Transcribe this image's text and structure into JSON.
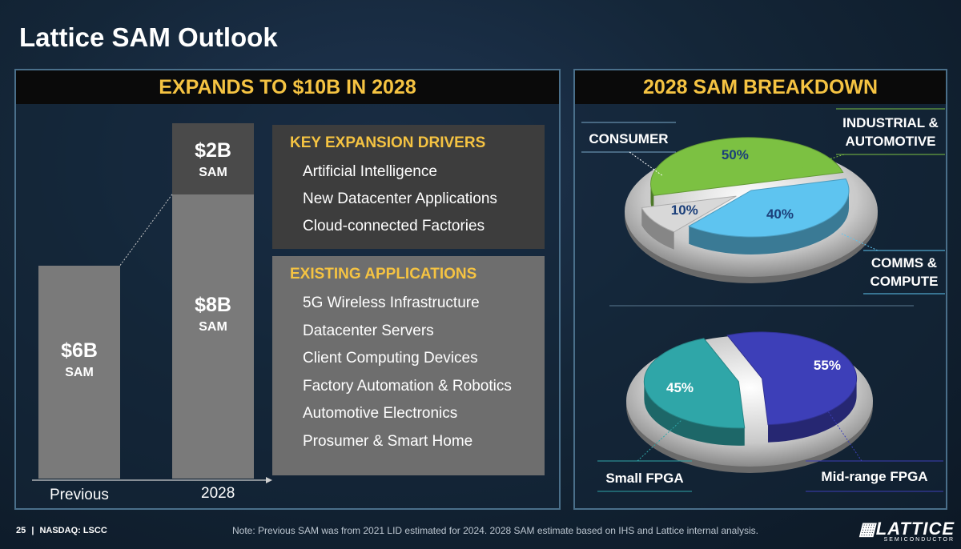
{
  "slide": {
    "title": "Lattice SAM Outlook"
  },
  "left_panel": {
    "header": "EXPANDS TO $10B IN 2028",
    "drivers": {
      "heading": "KEY EXPANSION DRIVERS",
      "items": [
        "Artificial Intelligence",
        "New Datacenter Applications",
        "Cloud-connected Factories"
      ]
    },
    "existing": {
      "heading": "EXISTING APPLICATIONS",
      "items": [
        "5G Wireless Infrastructure",
        "Datacenter Servers",
        "Client Computing Devices",
        "Factory Automation & Robotics",
        "Automotive Electronics",
        "Prosumer & Smart Home"
      ]
    }
  },
  "right_panel": {
    "header": "2028 SAM BREAKDOWN"
  },
  "chart_data": [
    {
      "type": "bar",
      "title": "EXPANDS TO $10B IN 2028",
      "categories": [
        "Previous",
        "2028"
      ],
      "unit": "$B",
      "series": [
        {
          "values": [
            6,
            8
          ],
          "labels": [
            "$6B",
            "$8B"
          ],
          "sublabel": "SAM"
        },
        {
          "values": [
            0,
            2
          ],
          "labels": [
            "",
            "$2B"
          ],
          "sublabel": "SAM"
        }
      ]
    },
    {
      "type": "pie",
      "title": "2028 SAM BREAKDOWN",
      "slices": [
        {
          "name": "INDUSTRIAL & AUTOMOTIVE",
          "value": 50,
          "label": "50%",
          "color": "#7cc142"
        },
        {
          "name": "COMMS & COMPUTE",
          "value": 40,
          "label": "40%",
          "color": "#5ec4f0"
        },
        {
          "name": "CONSUMER",
          "value": 10,
          "label": "10%",
          "color": "#d8d8d8"
        }
      ]
    },
    {
      "type": "pie",
      "slices": [
        {
          "name": "Mid-range FPGA",
          "value": 55,
          "label": "55%",
          "color": "#3d3fb8"
        },
        {
          "name": "Small FPGA",
          "value": 45,
          "label": "45%",
          "color": "#2fa6a8"
        }
      ]
    }
  ],
  "footer": {
    "page": "25",
    "separator": "|",
    "ticker": "NASDAQ: LSCC",
    "note": "Note: Previous SAM was from 2021 LID estimated for 2024. 2028 SAM estimate based on IHS and Lattice internal analysis.",
    "logo_word": "LATTICE",
    "logo_sub": "SEMICONDUCTOR"
  }
}
